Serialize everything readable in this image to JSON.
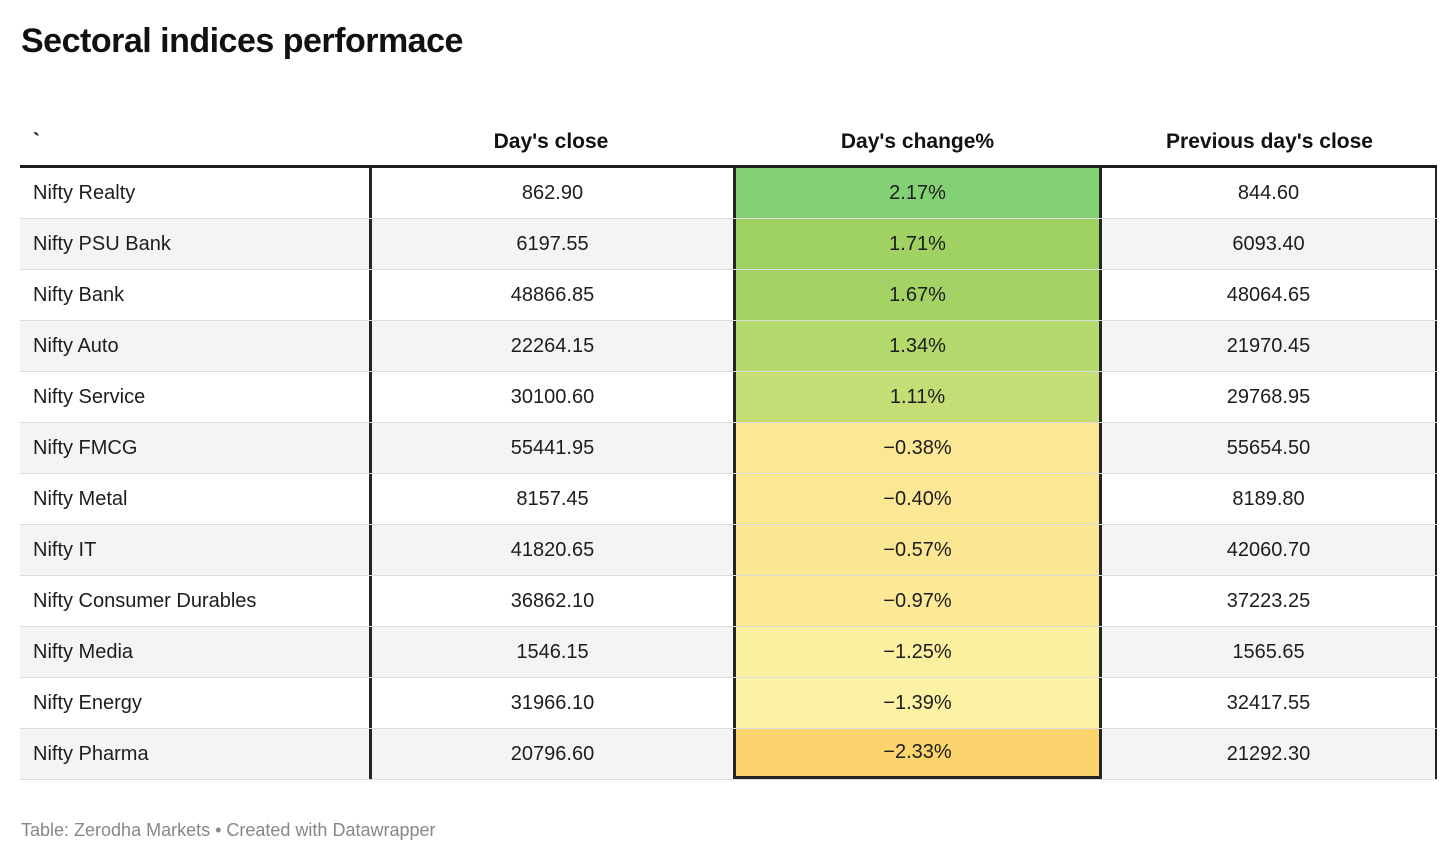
{
  "title": "Sectoral indices performace",
  "table": {
    "columns": [
      {
        "label": "`"
      },
      {
        "label": "Day's close"
      },
      {
        "label": "Day's change%"
      },
      {
        "label": "Previous day's close"
      }
    ],
    "rows": [
      {
        "label": "Nifty Realty",
        "close": "862.90",
        "change": "2.17%",
        "prev": "844.60",
        "color": "#84d175"
      },
      {
        "label": "Nifty PSU Bank",
        "close": "6197.55",
        "change": "1.71%",
        "prev": "6093.40",
        "color": "#a0d263"
      },
      {
        "label": "Nifty Bank",
        "close": "48866.85",
        "change": "1.67%",
        "prev": "48064.65",
        "color": "#a2d364"
      },
      {
        "label": "Nifty Auto",
        "close": "22264.15",
        "change": "1.34%",
        "prev": "21970.45",
        "color": "#b4d96d"
      },
      {
        "label": "Nifty Service",
        "close": "30100.60",
        "change": "1.11%",
        "prev": "29768.95",
        "color": "#c4dd74"
      },
      {
        "label": "Nifty FMCG",
        "close": "55441.95",
        "change": "−0.38%",
        "prev": "55654.50",
        "color": "#fbe795"
      },
      {
        "label": "Nifty Metal",
        "close": "8157.45",
        "change": "−0.40%",
        "prev": "8189.80",
        "color": "#fbe794"
      },
      {
        "label": "Nifty IT",
        "close": "41820.65",
        "change": "−0.57%",
        "prev": "42060.70",
        "color": "#fbe693"
      },
      {
        "label": "Nifty Consumer Durables",
        "close": "36862.10",
        "change": "−0.97%",
        "prev": "37223.25",
        "color": "#fbe997"
      },
      {
        "label": "Nifty Media",
        "close": "1546.15",
        "change": "−1.25%",
        "prev": "1565.65",
        "color": "#fbefa0"
      },
      {
        "label": "Nifty Energy",
        "close": "31966.10",
        "change": "−1.39%",
        "prev": "32417.55",
        "color": "#fcf2a4"
      },
      {
        "label": "Nifty Pharma",
        "close": "20796.60",
        "change": "−2.33%",
        "prev": "21292.30",
        "color": "#fbd46d"
      }
    ]
  },
  "footer": "Table: Zerodha Markets • Created with Datawrapper",
  "colors": {
    "header_border": "#1d1d1d",
    "column_divider": "#242424",
    "row_divider": "#dcdcdc",
    "row_alt_bg": "#f4f4f4",
    "footer_text": "#878787"
  },
  "chart_data": {
    "type": "table",
    "title": "Sectoral indices performace",
    "columns": [
      "`",
      "Day's close",
      "Day's change%",
      "Previous day's close"
    ],
    "rows": [
      [
        "Nifty Realty",
        862.9,
        2.17,
        844.6
      ],
      [
        "Nifty PSU Bank",
        6197.55,
        1.71,
        6093.4
      ],
      [
        "Nifty Bank",
        48866.85,
        1.67,
        48064.65
      ],
      [
        "Nifty Auto",
        22264.15,
        1.34,
        21970.45
      ],
      [
        "Nifty Service",
        30100.6,
        1.11,
        29768.95
      ],
      [
        "Nifty FMCG",
        55441.95,
        -0.38,
        55654.5
      ],
      [
        "Nifty Metal",
        8157.45,
        -0.4,
        8189.8
      ],
      [
        "Nifty IT",
        41820.65,
        -0.57,
        42060.7
      ],
      [
        "Nifty Consumer Durables",
        36862.1,
        -0.97,
        37223.25
      ],
      [
        "Nifty Media",
        1546.15,
        -1.25,
        1565.65
      ],
      [
        "Nifty Energy",
        31966.1,
        -1.39,
        32417.55
      ],
      [
        "Nifty Pharma",
        20796.6,
        -2.33,
        21292.3
      ]
    ],
    "heatmap_column": "Day's change%",
    "heatmap_palette": "green-yellow-orange diverging",
    "source": "Zerodha Markets",
    "tool": "Datawrapper"
  }
}
